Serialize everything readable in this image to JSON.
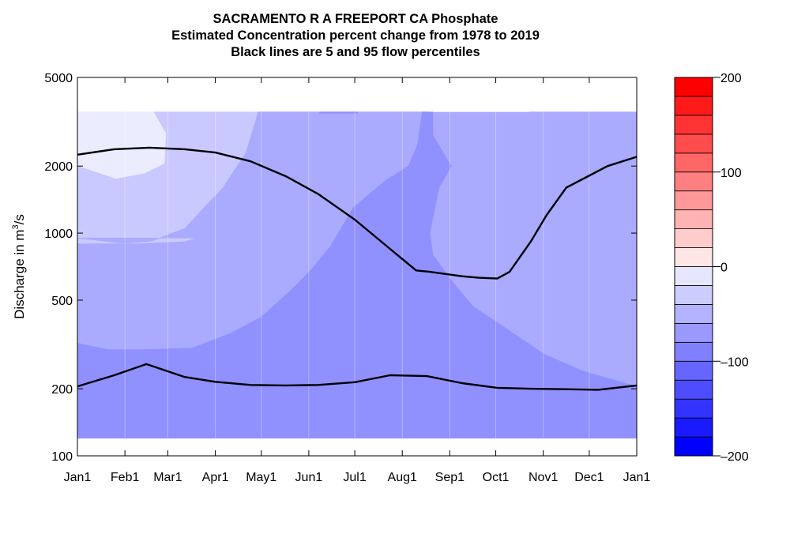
{
  "title_lines": [
    "SACRAMENTO R A FREEPORT CA  Phosphate",
    "Estimated Concentration percent change from 1978 to 2019",
    "Black lines are 5 and 95 flow percentiles"
  ],
  "chart_data": {
    "type": "heatmap",
    "ylabel_prefix": "Discharge in m",
    "ylabel_sup": "3",
    "ylabel_suffix": "/s",
    "y_scale": "log",
    "ylim": [
      100,
      5000
    ],
    "y_ticks": [
      100,
      200,
      500,
      1000,
      2000,
      5000
    ],
    "y_tick_labels": [
      "100",
      "200",
      "500",
      "1000",
      "2000",
      "5000"
    ],
    "x_ticks": [
      0,
      31,
      59,
      90,
      120,
      151,
      181,
      212,
      243,
      273,
      304,
      334,
      365
    ],
    "x_tick_labels": [
      "Jan1",
      "Feb1",
      "Mar1",
      "Apr1",
      "May1",
      "Jun1",
      "Jul1",
      "Aug1",
      "Sep1",
      "Oct1",
      "Nov1",
      "Dec1",
      "Jan1"
    ],
    "xlim": [
      0,
      365
    ],
    "shaded_q_range": [
      120,
      3500
    ],
    "contour_levels": [
      -200,
      -180,
      -160,
      -140,
      -120,
      -100,
      -80,
      -60,
      -40,
      -20,
      0,
      20,
      40,
      60,
      80,
      100,
      120,
      140,
      160,
      180,
      200
    ],
    "level_colors": [
      "#0000ff",
      "#1a1aff",
      "#3333ff",
      "#4d4dff",
      "#6666ff",
      "#8080ff",
      "#9999ff",
      "#b3b3ff",
      "#ccccff",
      "#e6e6ff",
      "#ffe6e6",
      "#ffcccc",
      "#ffb3b3",
      "#ff9999",
      "#ff8080",
      "#ff6666",
      "#ff4d4d",
      "#ff3333",
      "#ff1a1a",
      "#ff0000"
    ],
    "colorbar_ticks": [
      200,
      100,
      0,
      -100,
      -200
    ],
    "colorbar_tick_labels": [
      "200",
      "100",
      "0",
      "–100",
      "–200"
    ],
    "regions": [
      {
        "name": "band-minus-20-0",
        "value": -10,
        "color": "#ececff",
        "points": [
          [
            0,
            3500
          ],
          [
            228,
            3500
          ],
          [
            228,
            2750
          ],
          [
            210,
            2000
          ],
          [
            205,
            1900
          ],
          [
            174,
            1580
          ],
          [
            158,
            1400
          ],
          [
            143,
            1150
          ],
          [
            120,
            1020
          ],
          [
            88,
            960
          ],
          [
            65,
            940
          ],
          [
            45,
            970
          ],
          [
            25,
            1080
          ],
          [
            15,
            1280
          ],
          [
            5,
            1650
          ],
          [
            0,
            1800
          ]
        ]
      },
      {
        "name": "band-minus-40-20",
        "value": -30,
        "color": "#c9c9ff",
        "points": [
          [
            0,
            2000
          ],
          [
            25,
            1750
          ],
          [
            44,
            1850
          ],
          [
            57,
            2050
          ],
          [
            58,
            2800
          ],
          [
            50,
            3500
          ],
          [
            228,
            3500
          ],
          [
            228,
            2750
          ],
          [
            220,
            2000
          ],
          [
            212,
            1900
          ],
          [
            200,
            1850
          ],
          [
            180,
            1700
          ],
          [
            165,
            1550
          ],
          [
            150,
            1300
          ],
          [
            142,
            1100
          ],
          [
            135,
            950
          ],
          [
            115,
            1070
          ],
          [
            88,
            1000
          ],
          [
            70,
            920
          ],
          [
            40,
            900
          ],
          [
            25,
            900
          ],
          [
            0,
            900
          ]
        ]
      },
      {
        "name": "band-minus-40-20-right",
        "value": -30,
        "color": "#c9c9ff",
        "points": [
          [
            295,
            3500
          ],
          [
            365,
            3500
          ],
          [
            365,
            1450
          ],
          [
            350,
            1550
          ],
          [
            335,
            1750
          ],
          [
            328,
            3500
          ]
        ]
      },
      {
        "name": "band-minus-60-40",
        "value": -50,
        "color": "#aaaaff",
        "points": [
          [
            0,
            950
          ],
          [
            30,
            900
          ],
          [
            48,
            920
          ],
          [
            70,
            1050
          ],
          [
            95,
            1600
          ],
          [
            110,
            2300
          ],
          [
            118,
            3500
          ],
          [
            228,
            3500
          ],
          [
            250,
            2050
          ],
          [
            236,
            1600
          ],
          [
            242,
            800
          ],
          [
            255,
            600
          ],
          [
            275,
            440
          ],
          [
            305,
            320
          ],
          [
            335,
            255
          ],
          [
            365,
            215
          ],
          [
            365,
            690
          ],
          [
            340,
            760
          ],
          [
            300,
            900
          ],
          [
            290,
            1200
          ],
          [
            286,
            1600
          ],
          [
            300,
            2300
          ],
          [
            295,
            3500
          ],
          [
            365,
            3500
          ],
          [
            365,
            120
          ],
          [
            0,
            120
          ],
          [
            0,
            320
          ],
          [
            20,
            300
          ],
          [
            45,
            290
          ],
          [
            65,
            300
          ],
          [
            75,
            305
          ],
          [
            100,
            345
          ],
          [
            120,
            395
          ],
          [
            135,
            470
          ],
          [
            145,
            560
          ],
          [
            158,
            680
          ],
          [
            165,
            800
          ],
          [
            170,
            950
          ]
        ]
      },
      {
        "name": "band-minus-80-60",
        "value": -70,
        "color": "#9090ff",
        "points": [
          [
            0,
            320
          ],
          [
            20,
            300
          ],
          [
            45,
            300
          ],
          [
            75,
            305
          ],
          [
            100,
            355
          ],
          [
            120,
            420
          ],
          [
            140,
            560
          ],
          [
            153,
            690
          ],
          [
            165,
            870
          ],
          [
            180,
            1300
          ],
          [
            200,
            1700
          ],
          [
            216,
            2000
          ],
          [
            222,
            2500
          ],
          [
            225,
            3500
          ],
          [
            232,
            3500
          ],
          [
            232,
            2750
          ],
          [
            244,
            2000
          ],
          [
            236,
            1600
          ],
          [
            230,
            1000
          ],
          [
            232,
            800
          ],
          [
            245,
            600
          ],
          [
            258,
            470
          ],
          [
            278,
            380
          ],
          [
            305,
            285
          ],
          [
            330,
            240
          ],
          [
            365,
            205
          ],
          [
            365,
            120
          ],
          [
            0,
            120
          ]
        ]
      },
      {
        "name": "sliver-top",
        "value": -70,
        "color": "#9090ff",
        "points": [
          [
            158,
            3500
          ],
          [
            183,
            3500
          ],
          [
            183,
            3450
          ],
          [
            158,
            3450
          ]
        ]
      }
    ],
    "series": [
      {
        "name": "",
        "values": [
          [
            0,
            2250
          ],
          [
            24,
            2380
          ],
          [
            47,
            2420
          ],
          [
            70,
            2380
          ],
          [
            90,
            2300
          ],
          [
            113,
            2100
          ],
          [
            136,
            1800
          ],
          [
            157,
            1500
          ],
          [
            181,
            1150
          ],
          [
            204,
            850
          ],
          [
            221,
            680
          ],
          [
            230,
            670
          ],
          [
            251,
            640
          ],
          [
            262,
            630
          ],
          [
            274,
            625
          ],
          [
            282,
            670
          ],
          [
            296,
            920
          ],
          [
            306,
            1200
          ],
          [
            319,
            1600
          ],
          [
            346,
            2000
          ],
          [
            365,
            2200
          ]
        ]
      },
      {
        "name": "",
        "values": [
          [
            0,
            205
          ],
          [
            24,
            230
          ],
          [
            45,
            258
          ],
          [
            70,
            226
          ],
          [
            90,
            215
          ],
          [
            113,
            208
          ],
          [
            136,
            207
          ],
          [
            157,
            208
          ],
          [
            181,
            214
          ],
          [
            204,
            230
          ],
          [
            228,
            228
          ],
          [
            251,
            212
          ],
          [
            274,
            202
          ],
          [
            296,
            200
          ],
          [
            319,
            199
          ],
          [
            340,
            198
          ],
          [
            365,
            207
          ]
        ]
      }
    ]
  }
}
